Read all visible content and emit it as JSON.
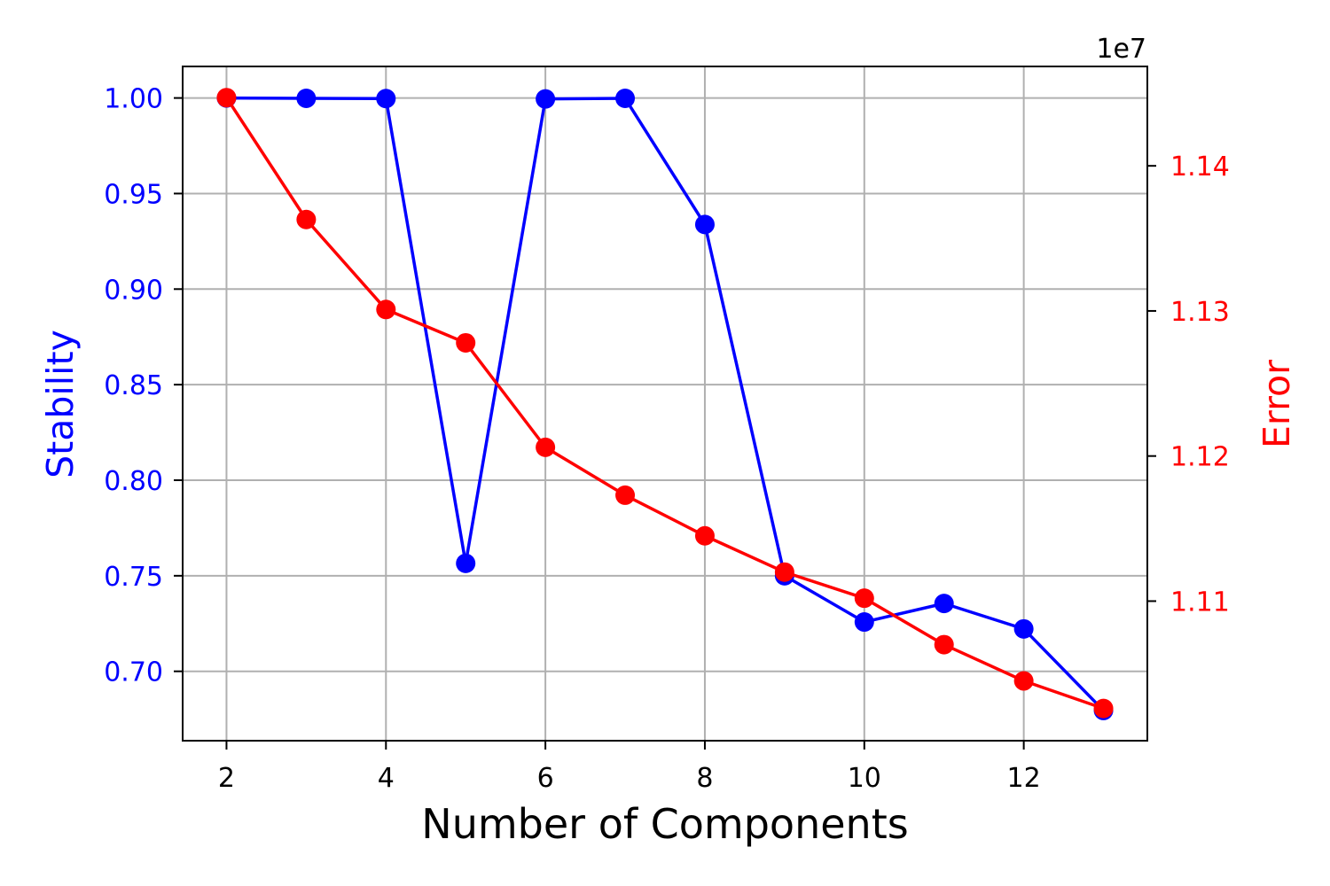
{
  "chart_data": {
    "type": "line",
    "xlabel": "Number of Components",
    "x": [
      2,
      3,
      4,
      5,
      6,
      7,
      8,
      9,
      10,
      11,
      12,
      13
    ],
    "xlim": [
      1.45,
      13.55
    ],
    "xticks": [
      2,
      4,
      6,
      8,
      10,
      12
    ],
    "xtick_labels": [
      "2",
      "4",
      "6",
      "8",
      "10",
      "12"
    ],
    "grid": true,
    "left_axis": {
      "label": "Stability",
      "color": "#0000ff",
      "ylim": [
        0.6637,
        1.0165
      ],
      "ticks": [
        0.7,
        0.75,
        0.8,
        0.85,
        0.9,
        0.95,
        1.0
      ],
      "tick_labels": [
        "0.70",
        "0.75",
        "0.80",
        "0.85",
        "0.90",
        "0.95",
        "1.00"
      ]
    },
    "right_axis": {
      "label": "Error",
      "color": "#ff0000",
      "offset_text": "1e7",
      "ylim": [
        1.10038,
        1.14685
      ],
      "ticks": [
        1.11,
        1.12,
        1.13,
        1.14
      ],
      "tick_labels": [
        "1.11",
        "1.12",
        "1.13",
        "1.14"
      ]
    },
    "series": [
      {
        "axis": "left",
        "color": "#0000ff",
        "values": [
          1.0,
          0.9998,
          0.9997,
          0.7565,
          0.9995,
          0.9998,
          0.9338,
          0.75,
          0.7258,
          0.7355,
          0.7222,
          0.6795
        ]
      },
      {
        "axis": "right",
        "color": "#ff0000",
        "values": [
          1.1447,
          1.1363,
          1.1301,
          1.1278,
          1.1206,
          1.1173,
          1.1145,
          1.112,
          1.1102,
          1.107,
          1.1045,
          1.1026
        ]
      }
    ]
  }
}
